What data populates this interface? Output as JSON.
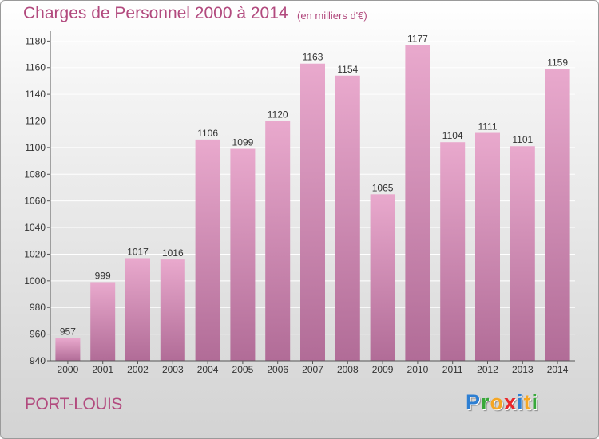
{
  "header": {
    "title": "Charges de Personnel 2000 à 2014",
    "subtitle": "(en milliers d'€)"
  },
  "footer": {
    "city": "PORT-LOUIS",
    "logo_letters": [
      {
        "char": "P",
        "color": "#2d7fd3"
      },
      {
        "char": "r",
        "color": "#38a83a"
      },
      {
        "char": "o",
        "color": "#f5a623"
      },
      {
        "char": "x",
        "color": "#e8262a"
      },
      {
        "char": "i",
        "color": "#2d7fd3"
      },
      {
        "char": "t",
        "color": "#f5a623"
      },
      {
        "char": "i",
        "color": "#38a83a"
      }
    ]
  },
  "colors": {
    "text_accent": "#b24a7e",
    "bar_top": "#e9a9cd",
    "bar_bottom": "#b16c97"
  },
  "chart_data": {
    "type": "bar",
    "categories": [
      "2000",
      "2001",
      "2002",
      "2003",
      "2004",
      "2005",
      "2006",
      "2007",
      "2008",
      "2009",
      "2010",
      "2011",
      "2012",
      "2013",
      "2014"
    ],
    "values": [
      957,
      999,
      1017,
      1016,
      1106,
      1099,
      1120,
      1163,
      1154,
      1065,
      1177,
      1104,
      1111,
      1101,
      1159
    ],
    "ylim": [
      940,
      1185
    ],
    "yticks": [
      940,
      960,
      980,
      1000,
      1020,
      1040,
      1060,
      1080,
      1100,
      1120,
      1140,
      1160,
      1180
    ],
    "grid": true,
    "data_labels": true
  }
}
